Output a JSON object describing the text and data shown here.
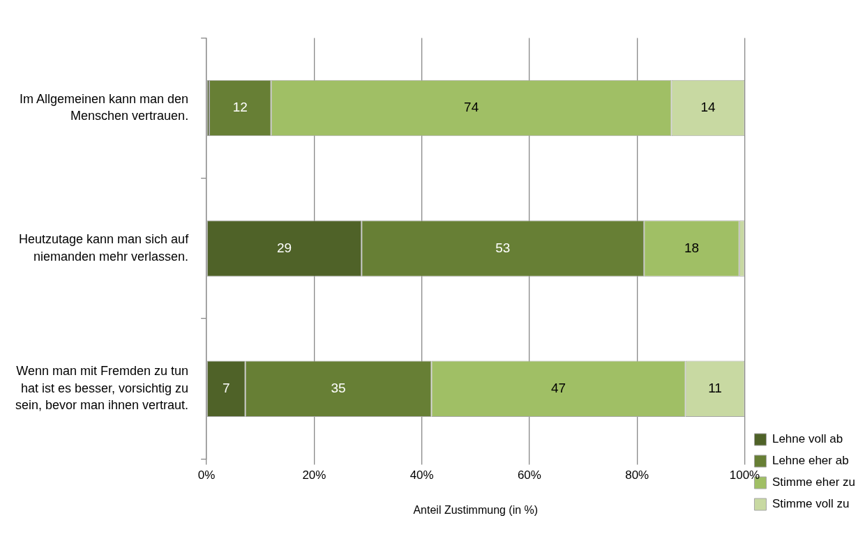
{
  "chart_data": {
    "type": "bar",
    "orientation": "horizontal",
    "stacked": true,
    "categories": [
      "Im Allgemeinen kann man den Menschen vertrauen.",
      "Heutzutage kann man sich auf niemanden mehr verlassen.",
      "Wenn man mit Fremden zu tun hat ist es besser, vorsichtig zu sein, bevor man ihnen vertraut."
    ],
    "series": [
      {
        "name": "Lehne voll ab",
        "color": "#4f6228",
        "values": [
          0.5,
          28.8,
          7.2
        ],
        "value_labels": [
          null,
          "29",
          "7"
        ]
      },
      {
        "name": "Lehne eher ab",
        "color": "#677f35",
        "values": [
          11.5,
          52.5,
          34.6
        ],
        "value_labels": [
          "12",
          "53",
          "35"
        ]
      },
      {
        "name": "Stimme eher zu",
        "color": "#a0bf65",
        "values": [
          74.4,
          17.7,
          47.2
        ],
        "value_labels": [
          "74",
          "18",
          "47"
        ]
      },
      {
        "name": "Stimme voll zu",
        "color": "#c8d9a2",
        "values": [
          13.6,
          1.0,
          11.0
        ],
        "value_labels": [
          "14",
          null,
          "11"
        ]
      }
    ],
    "xlim": [
      0,
      100
    ],
    "xticks": [
      {
        "value": 0,
        "label": "0%"
      },
      {
        "value": 20,
        "label": "20%"
      },
      {
        "value": 40,
        "label": "40%"
      },
      {
        "value": 60,
        "label": "60%"
      },
      {
        "value": 80,
        "label": "80%"
      },
      {
        "value": 100,
        "label": "100%"
      }
    ],
    "xlabel": "Anteil Zustimmung (in %)",
    "grid": "x",
    "legend": "bottom right"
  }
}
